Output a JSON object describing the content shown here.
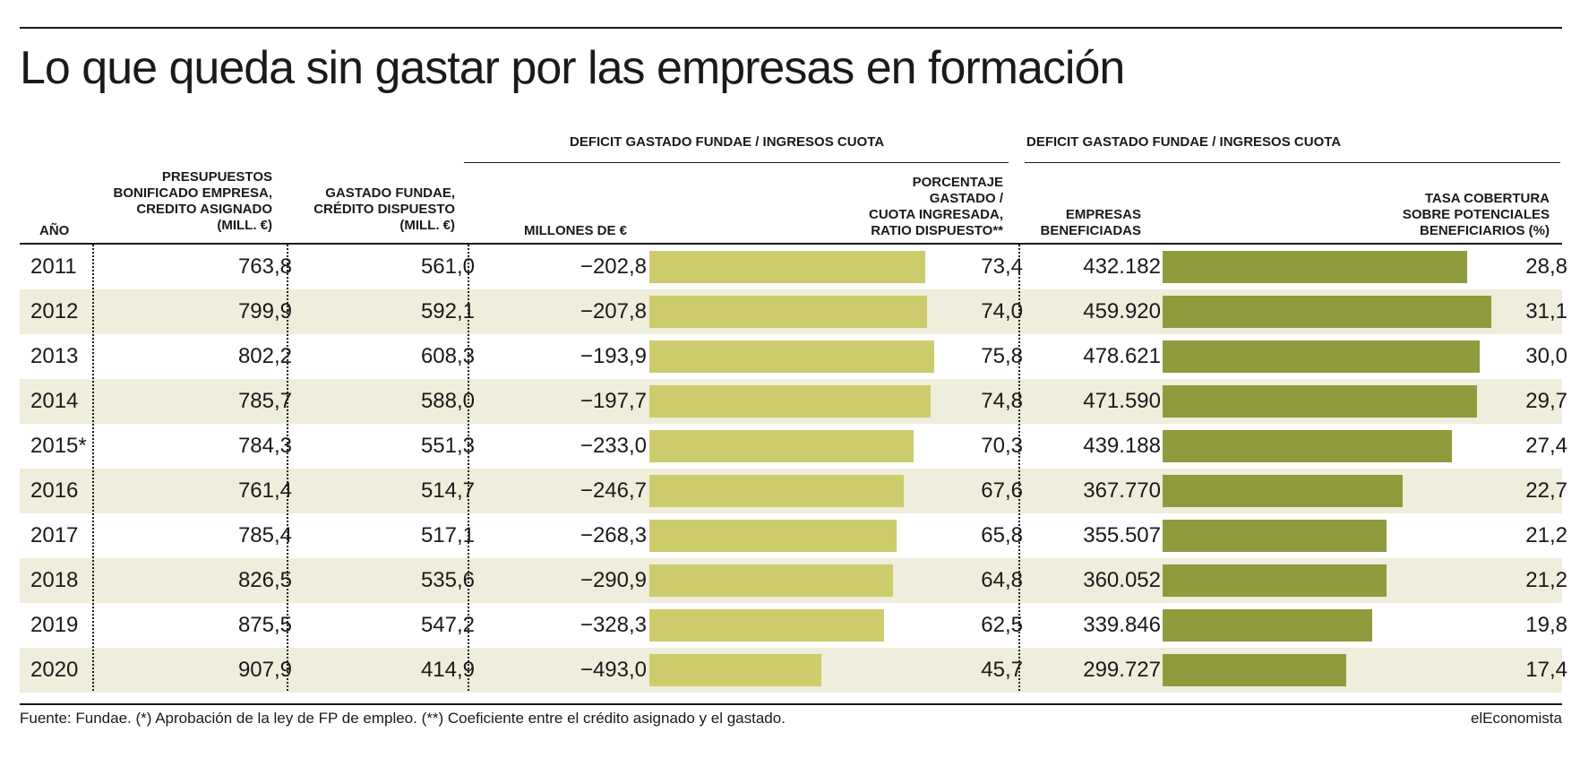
{
  "title": "Lo que queda sin gastar por las empresas en formación",
  "group_headers": [
    "DEFICIT GASTADO FUNDAE / INGRESOS CUOTA",
    "DEFICIT GASTADO FUNDAE / INGRESOS CUOTA"
  ],
  "columns": {
    "year": "AÑO",
    "budget": [
      "PRESUPUESTOS",
      "BONIFICADO EMPRESA,",
      "CREDITO ASIGNADO",
      "(MILL. €)"
    ],
    "spent": [
      "GASTADO FUNDAE,",
      "CRÉDITO DISPUESTO",
      "(MILL. €)"
    ],
    "deficit": "MILLONES DE €",
    "pct": [
      "PORCENTAJE",
      "GASTADO /",
      "CUOTA INGRESADA,",
      "RATIO DISPUESTO**"
    ],
    "companies": [
      "EMPRESAS",
      "BENEFICIADAS"
    ],
    "coverage": [
      "TASA COBERTURA",
      "SOBRE POTENCIALES",
      "BENEFICIARIOS (%)"
    ]
  },
  "footer": {
    "source": "Fuente: Fundae. (*) Aprobación de la ley de FP de empleo.  (**) Coeficiente entre el crédito asignado y el gastado.",
    "brand": "elEconomista"
  },
  "colors": {
    "bar_pct": "#cdcc6c",
    "bar_coverage": "#8f9b3d",
    "row_shade": "#efeddb"
  },
  "chart_data": {
    "type": "table",
    "rows": [
      {
        "year": "2011",
        "budget": "763,8",
        "spent": "561,0",
        "deficit": "−202,8",
        "pct": "73,4",
        "pct_value": 73.4,
        "companies": "432.182",
        "coverage": "28,8",
        "coverage_value": 28.8
      },
      {
        "year": "2012",
        "budget": "799,9",
        "spent": "592,1",
        "deficit": "−207,8",
        "pct": "74,0",
        "pct_value": 74.0,
        "companies": "459.920",
        "coverage": "31,1",
        "coverage_value": 31.1
      },
      {
        "year": "2013",
        "budget": "802,2",
        "spent": "608,3",
        "deficit": "−193,9",
        "pct": "75,8",
        "pct_value": 75.8,
        "companies": "478.621",
        "coverage": "30,0",
        "coverage_value": 30.0
      },
      {
        "year": "2014",
        "budget": "785,7",
        "spent": "588,0",
        "deficit": "−197,7",
        "pct": "74,8",
        "pct_value": 74.8,
        "companies": "471.590",
        "coverage": "29,7",
        "coverage_value": 29.7
      },
      {
        "year": "2015*",
        "budget": "784,3",
        "spent": "551,3",
        "deficit": "−233,0",
        "pct": "70,3",
        "pct_value": 70.3,
        "companies": "439.188",
        "coverage": "27,4",
        "coverage_value": 27.4
      },
      {
        "year": "2016",
        "budget": "761,4",
        "spent": "514,7",
        "deficit": "−246,7",
        "pct": "67,6",
        "pct_value": 67.6,
        "companies": "367.770",
        "coverage": "22,7",
        "coverage_value": 22.7
      },
      {
        "year": "2017",
        "budget": "785,4",
        "spent": "517,1",
        "deficit": "−268,3",
        "pct": "65,8",
        "pct_value": 65.8,
        "companies": "355.507",
        "coverage": "21,2",
        "coverage_value": 21.2
      },
      {
        "year": "2018",
        "budget": "826,5",
        "spent": "535,6",
        "deficit": "−290,9",
        "pct": "64,8",
        "pct_value": 64.8,
        "companies": "360.052",
        "coverage": "21,2",
        "coverage_value": 21.2
      },
      {
        "year": "2019",
        "budget": "875,5",
        "spent": "547,2",
        "deficit": "−328,3",
        "pct": "62,5",
        "pct_value": 62.5,
        "companies": "339.846",
        "coverage": "19,8",
        "coverage_value": 19.8
      },
      {
        "year": "2020",
        "budget": "907,9",
        "spent": "414,9",
        "deficit": "−493,0",
        "pct": "45,7",
        "pct_value": 45.7,
        "companies": "299.727",
        "coverage": "17,4",
        "coverage_value": 17.4
      }
    ]
  }
}
